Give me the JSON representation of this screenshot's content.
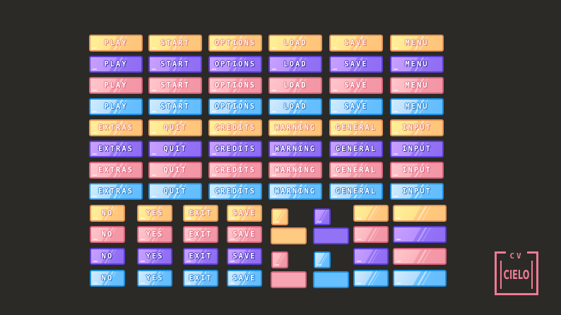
{
  "sheet": {
    "background": "#2b2a26",
    "colors": {
      "orange": {
        "fill": "#ffca7e",
        "border": "#e8925a"
      },
      "purple": {
        "fill": "#8f6cf3",
        "border": "#5b3fd6"
      },
      "pink": {
        "fill": "#f296a5",
        "border": "#d9607a"
      },
      "blue": {
        "fill": "#62bcfd",
        "border": "#1c8ee0"
      }
    },
    "labels_top": [
      "PLAY",
      "START",
      "OPTIONS",
      "LOAD",
      "SAVE",
      "MENU"
    ],
    "labels_mid": [
      "EXTRAS",
      "QUIT",
      "CREDITS",
      "WARNING",
      "GENERAL",
      "INPUT"
    ],
    "labels_small": [
      "NO",
      "YES",
      "EXIT",
      "SAVE"
    ],
    "top_row_colors": [
      "orange",
      "purple",
      "pink",
      "blue"
    ],
    "small_row_colors": [
      "orange",
      "pink",
      "purple",
      "blue"
    ]
  },
  "logo": {
    "top_text": "CV",
    "main_text": "CIELO",
    "color": "#f07a93"
  }
}
